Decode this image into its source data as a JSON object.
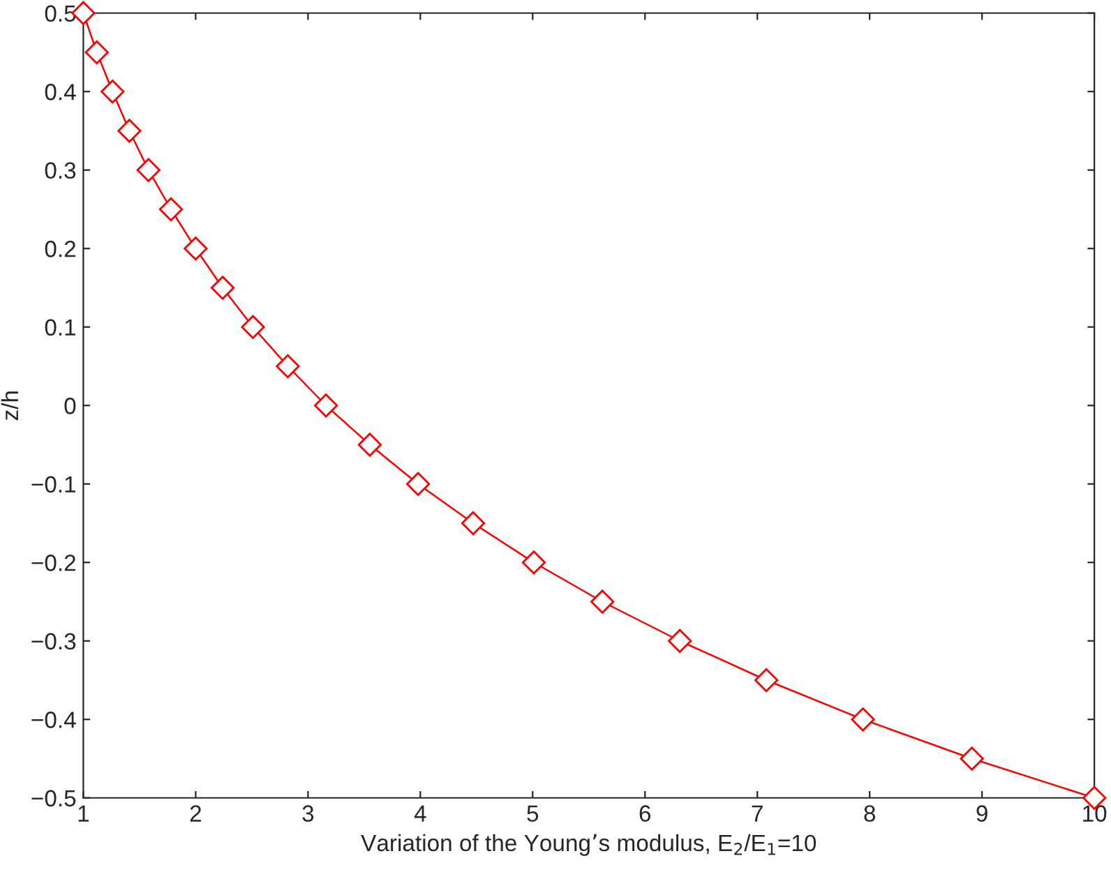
{
  "chart_data": {
    "type": "line",
    "xlabel": "Variation of the Young’s modulus, E$_{2}$/E$_{1}$=10",
    "ylabel": "z/h",
    "x": [
      1,
      1.12,
      1.26,
      1.41,
      1.58,
      1.78,
      2.0,
      2.24,
      2.51,
      2.82,
      3.16,
      3.55,
      3.98,
      4.47,
      5.01,
      5.62,
      6.31,
      7.08,
      7.94,
      8.91,
      10
    ],
    "series": [
      {
        "color": "#ff0000",
        "values": [
          0.5,
          0.45,
          0.4,
          0.35,
          0.3,
          0.25,
          0.2,
          0.15,
          0.1,
          0.05,
          0,
          -0.05,
          -0.1,
          -0.15,
          -0.2,
          -0.25,
          -0.3,
          -0.35,
          -0.4,
          -0.45,
          -0.5
        ]
      }
    ],
    "xlim": [
      1,
      10
    ],
    "xticks": [
      1,
      2,
      3,
      4,
      5,
      6,
      7,
      8,
      9,
      10
    ],
    "ylim": [
      -0.5,
      0.5
    ],
    "yticks": [
      {
        "value": -0.5,
        "label": "−0.5"
      },
      {
        "value": -0.4,
        "label": "−0.4"
      },
      {
        "value": -0.3,
        "label": "−0.3"
      },
      {
        "value": -0.2,
        "label": "−0.2"
      },
      {
        "value": -0.1,
        "label": "−0.1"
      },
      0,
      0.1,
      0.2,
      0.3,
      0.4,
      0.5
    ],
    "grid": false,
    "legend": false,
    "marker": "diamond",
    "line_style": "solid"
  }
}
